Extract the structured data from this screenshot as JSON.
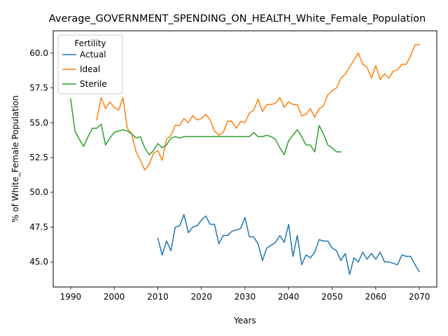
{
  "chart_data": {
    "type": "line",
    "title": "Average_GOVERNMENT_SPENDING_ON_HEALTH_White_Female_Population",
    "xlabel": "Years",
    "ylabel": "% of White_Female Population",
    "xlim": [
      1986,
      2074
    ],
    "ylim": [
      43.2,
      61.6
    ],
    "xticks": [
      1990,
      2000,
      2010,
      2020,
      2030,
      2040,
      2050,
      2060,
      2070
    ],
    "yticks": [
      45.0,
      47.5,
      50.0,
      52.5,
      55.0,
      57.5,
      60.0
    ],
    "ytick_labels": [
      "45.0",
      "47.5",
      "50.0",
      "52.5",
      "55.0",
      "57.5",
      "60.0"
    ],
    "grid": false,
    "legend": {
      "title": "Fertility",
      "placement": "top-left"
    },
    "series": [
      {
        "name": "Actual",
        "color": "#1f77b4",
        "x": [
          2010,
          2011,
          2012,
          2013,
          2014,
          2015,
          2016,
          2017,
          2018,
          2019,
          2020,
          2021,
          2022,
          2023,
          2024,
          2025,
          2026,
          2027,
          2028,
          2029,
          2030,
          2031,
          2032,
          2033,
          2034,
          2035,
          2036,
          2037,
          2038,
          2039,
          2040,
          2041,
          2042,
          2043,
          2044,
          2045,
          2046,
          2047,
          2048,
          2049,
          2050,
          2051,
          2052,
          2053,
          2054,
          2055,
          2056,
          2057,
          2058,
          2059,
          2060,
          2061,
          2062,
          2063,
          2064,
          2065,
          2066,
          2067,
          2068,
          2069,
          2070
        ],
        "y": [
          46.7,
          45.5,
          46.5,
          45.8,
          47.5,
          47.6,
          48.4,
          47.1,
          47.5,
          47.6,
          48.0,
          48.3,
          47.7,
          47.7,
          46.3,
          46.9,
          46.9,
          47.2,
          47.3,
          47.4,
          48.2,
          46.8,
          46.8,
          46.3,
          45.1,
          46.0,
          46.2,
          46.4,
          46.9,
          46.4,
          47.7,
          45.4,
          46.9,
          44.8,
          45.5,
          45.3,
          45.7,
          46.6,
          46.5,
          46.5,
          46.0,
          45.8,
          45.1,
          45.6,
          44.1,
          45.3,
          45.0,
          45.7,
          45.2,
          45.6,
          45.2,
          45.7,
          45.0,
          45.0,
          44.9,
          44.8,
          45.5,
          45.4,
          45.4,
          44.8,
          44.3
        ]
      },
      {
        "name": "Ideal",
        "color": "#ff7f0e",
        "x": [
          1996,
          1997,
          1998,
          1999,
          2000,
          2001,
          2002,
          2003,
          2004,
          2005,
          2006,
          2007,
          2008,
          2009,
          2010,
          2011,
          2012,
          2013,
          2014,
          2015,
          2016,
          2017,
          2018,
          2019,
          2020,
          2021,
          2022,
          2023,
          2024,
          2025,
          2026,
          2027,
          2028,
          2029,
          2030,
          2031,
          2032,
          2033,
          2034,
          2035,
          2036,
          2037,
          2038,
          2039,
          2040,
          2041,
          2042,
          2043,
          2044,
          2045,
          2046,
          2047,
          2048,
          2049,
          2050,
          2051,
          2052,
          2053,
          2054,
          2055,
          2056,
          2057,
          2058,
          2059,
          2060,
          2061,
          2062,
          2063,
          2064,
          2065,
          2066,
          2067,
          2068,
          2069,
          2070
        ],
        "y": [
          55.2,
          56.8,
          56.0,
          56.5,
          56.1,
          55.9,
          56.8,
          54.6,
          54.2,
          52.9,
          52.3,
          51.6,
          52.0,
          52.8,
          53.0,
          52.3,
          53.8,
          54.1,
          54.8,
          54.8,
          55.3,
          55.0,
          55.5,
          55.2,
          55.3,
          55.6,
          55.2,
          54.4,
          54.1,
          54.3,
          55.1,
          55.1,
          54.6,
          55.1,
          55.0,
          55.7,
          55.9,
          56.7,
          55.8,
          56.3,
          56.3,
          56.4,
          56.8,
          56.1,
          56.5,
          56.3,
          56.3,
          55.5,
          55.6,
          56.0,
          55.4,
          56.0,
          56.2,
          57.0,
          57.3,
          57.5,
          58.2,
          58.5,
          59.0,
          59.5,
          60.0,
          59.2,
          59.0,
          58.2,
          59.1,
          58.1,
          58.5,
          58.2,
          58.7,
          58.8,
          59.2,
          59.2,
          59.8,
          60.6,
          60.6
        ]
      },
      {
        "name": "Sterile",
        "color": "#2ca02c",
        "x": [
          1990,
          1991,
          1992,
          1993,
          1994,
          1995,
          1996,
          1997,
          1998,
          1999,
          2000,
          2001,
          2002,
          2003,
          2004,
          2005,
          2006,
          2007,
          2008,
          2009,
          2010,
          2011,
          2012,
          2013,
          2014,
          2015,
          2016,
          2017,
          2018,
          2019,
          2020,
          2021,
          2022,
          2023,
          2024,
          2025,
          2026,
          2027,
          2028,
          2029,
          2030,
          2031,
          2032,
          2033,
          2034,
          2035,
          2036,
          2037,
          2038,
          2039,
          2040,
          2041,
          2042,
          2043,
          2044,
          2045,
          2046,
          2047,
          2048,
          2049,
          2050,
          2051,
          2052
        ],
        "y": [
          56.7,
          54.4,
          53.8,
          53.3,
          54.0,
          54.6,
          54.6,
          54.9,
          53.4,
          53.9,
          54.3,
          54.4,
          54.5,
          54.4,
          54.2,
          53.9,
          54.0,
          53.2,
          52.7,
          53.0,
          53.5,
          53.2,
          53.4,
          53.9,
          54.0,
          53.9,
          54.0,
          54.0,
          54.0,
          54.0,
          54.0,
          54.0,
          54.0,
          54.0,
          54.0,
          54.0,
          54.0,
          54.0,
          54.0,
          54.0,
          54.0,
          54.0,
          54.3,
          54.0,
          54.0,
          54.1,
          54.0,
          53.8,
          53.2,
          52.7,
          53.7,
          54.1,
          54.5,
          54.0,
          53.4,
          53.4,
          52.9,
          54.8,
          54.2,
          53.4,
          53.2,
          52.9,
          52.9
        ]
      }
    ]
  }
}
